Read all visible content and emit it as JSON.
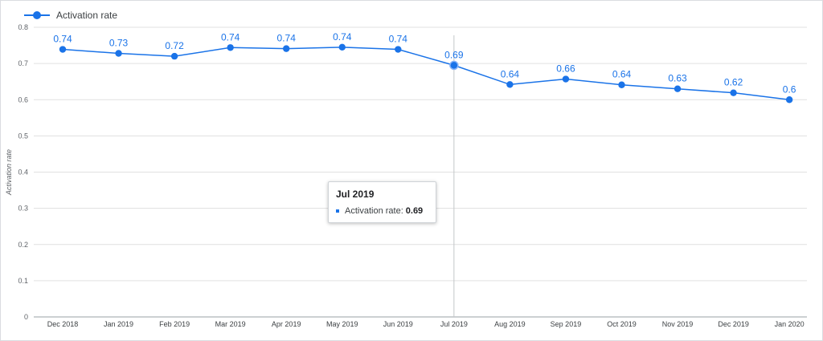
{
  "chart_data": {
    "type": "line",
    "title": "",
    "xlabel": "",
    "ylabel": "Activation rate",
    "ylim": [
      0,
      0.8
    ],
    "yticks": [
      "0",
      "0.1",
      "0.2",
      "0.3",
      "0.4",
      "0.5",
      "0.6",
      "0.7",
      "0.8"
    ],
    "grid": true,
    "legend": "top-left",
    "categories": [
      "Dec 2018",
      "Jan 2019",
      "Feb 2019",
      "Mar 2019",
      "Apr 2019",
      "May 2019",
      "Jun 2019",
      "Jul 2019",
      "Aug 2019",
      "Sep 2019",
      "Oct 2019",
      "Nov 2019",
      "Dec 2019",
      "Jan 2020"
    ],
    "series": [
      {
        "name": "Activation rate",
        "color": "#1a73e8",
        "values": [
          0.739,
          0.728,
          0.72,
          0.744,
          0.741,
          0.745,
          0.739,
          0.695,
          0.642,
          0.657,
          0.641,
          0.63,
          0.619,
          0.6
        ],
        "labels": [
          "0.74",
          "0.73",
          "0.72",
          "0.74",
          "0.74",
          "0.74",
          "0.74",
          "0.69",
          "0.64",
          "0.66",
          "0.64",
          "0.63",
          "0.62",
          "0.6"
        ]
      }
    ]
  },
  "tooltip": {
    "title": "Jul 2019",
    "series_label": "Activation rate:",
    "value": "0.69",
    "hover_index": 7
  }
}
